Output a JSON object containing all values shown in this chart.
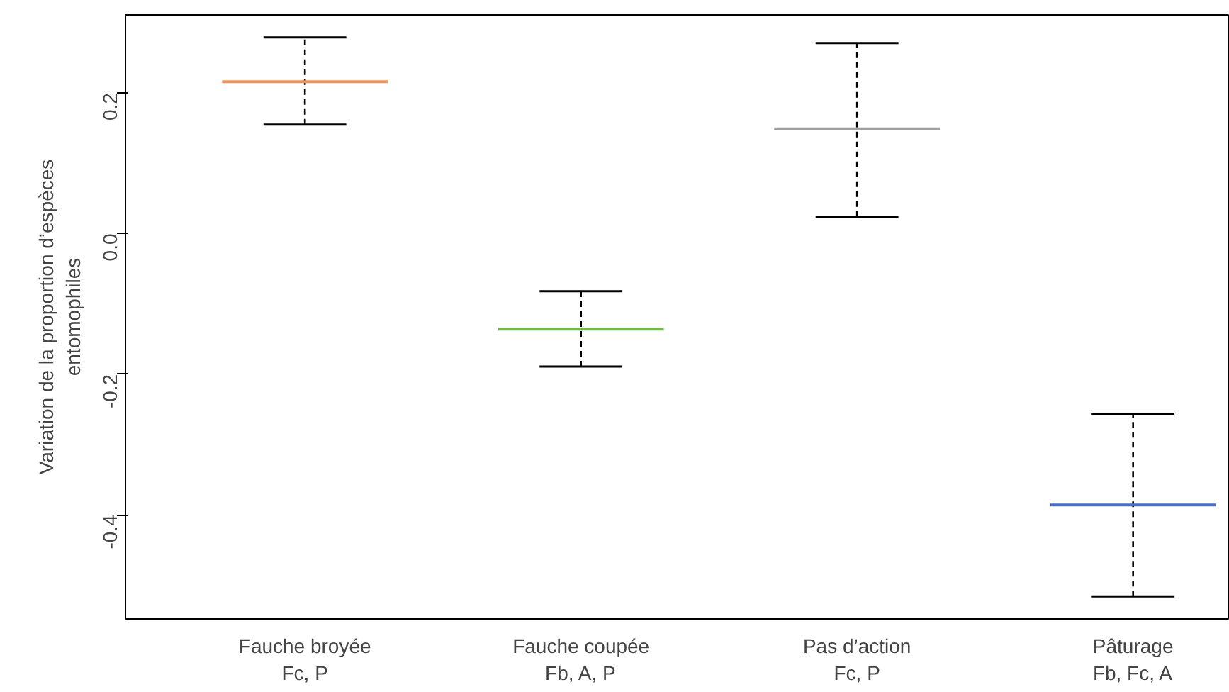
{
  "chart_data": {
    "type": "box",
    "ylabel": "Variation de la proportion d’espèces\nentomophiles",
    "categories": [
      "Fauche broyée\nFc, P",
      "Fauche coupée\nFb, A, P",
      "Pas d’action\nFc, P",
      "Pâturage\nFb, Fc, A"
    ],
    "colors": [
      "#f4925a",
      "#70b84a",
      "#a0a0a0",
      "#4a6fbf"
    ],
    "boxes": [
      {
        "low": 0.155,
        "q1": 0.216,
        "median": 0.216,
        "q3": 0.216,
        "high": 0.279
      },
      {
        "low": -0.189,
        "q1": -0.136,
        "median": -0.136,
        "q3": -0.136,
        "high": -0.082
      },
      {
        "low": 0.024,
        "q1": 0.149,
        "median": 0.149,
        "q3": 0.149,
        "high": 0.271
      },
      {
        "low": -0.516,
        "q1": -0.386,
        "median": -0.386,
        "q3": -0.386,
        "high": -0.256
      }
    ],
    "ylim": [
      -0.548,
      0.311
    ],
    "yticks": [
      {
        "value": -0.4,
        "label": "-0.4"
      },
      {
        "value": -0.2,
        "label": "-0.2"
      },
      {
        "value": 0,
        "label": "0.0"
      },
      {
        "value": 0.2,
        "label": "0.2"
      }
    ],
    "grid": false
  }
}
